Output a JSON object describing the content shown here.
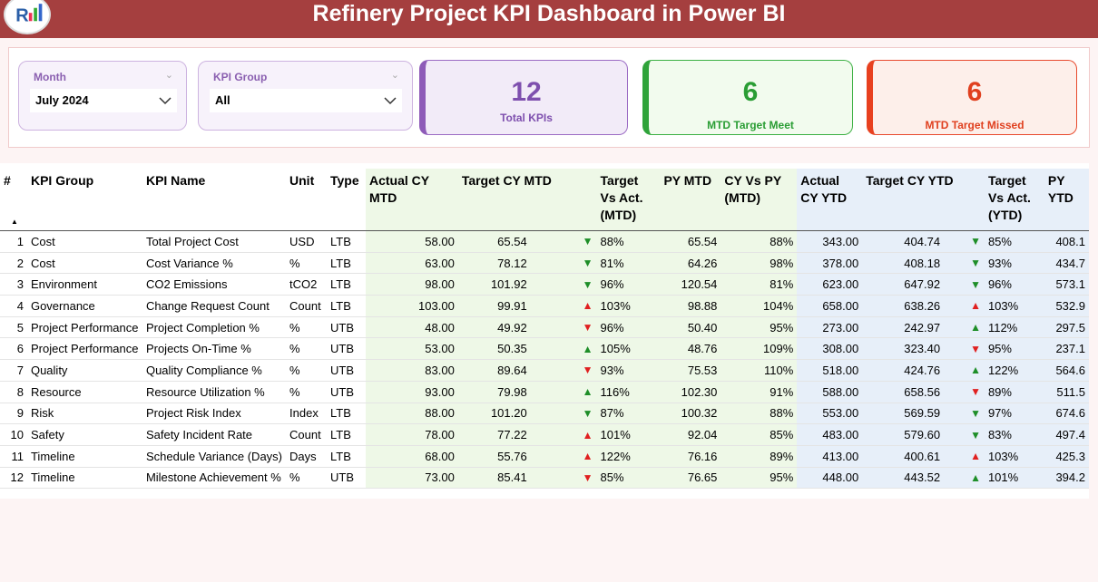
{
  "header": {
    "title": "Refinery Project KPI Dashboard in Power BI"
  },
  "slicers": [
    {
      "label": "Month",
      "value": "July 2024"
    },
    {
      "label": "KPI Group",
      "value": "All"
    }
  ],
  "cards": [
    {
      "value": "12",
      "label": "Total KPIs"
    },
    {
      "value": "6",
      "label": "MTD Target Meet"
    },
    {
      "value": "6",
      "label": "MTD Target Missed"
    }
  ],
  "table": {
    "columns": [
      "#",
      "KPI Group",
      "KPI Name",
      "Unit",
      "Type",
      "Actual CY MTD",
      "Target CY MTD",
      "Target Vs Act. (MTD)",
      "PY MTD",
      "CY Vs PY (MTD)",
      "Actual CY YTD",
      "Target CY YTD",
      "Target Vs Act. (YTD)",
      "PY YTD"
    ],
    "rows": [
      [
        "1",
        "Cost",
        "Total Project Cost",
        "USD",
        "LTB",
        "58.00",
        "65.54",
        "▼",
        "88%",
        "65.54",
        "88%",
        "343.00",
        "404.74",
        "▼",
        "85%",
        "408.1"
      ],
      [
        "2",
        "Cost",
        "Cost Variance %",
        "%",
        "LTB",
        "63.00",
        "78.12",
        "▼",
        "81%",
        "64.26",
        "98%",
        "378.00",
        "408.18",
        "▼",
        "93%",
        "434.7"
      ],
      [
        "3",
        "Environment",
        "CO2 Emissions",
        "tCO2",
        "LTB",
        "98.00",
        "101.92",
        "▼",
        "96%",
        "120.54",
        "81%",
        "623.00",
        "647.92",
        "▼",
        "96%",
        "573.1"
      ],
      [
        "4",
        "Governance",
        "Change Request Count",
        "Count",
        "LTB",
        "103.00",
        "99.91",
        "▲",
        "103%",
        "98.88",
        "104%",
        "658.00",
        "638.26",
        "▲",
        "103%",
        "532.9"
      ],
      [
        "5",
        "Project Performance",
        "Project Completion %",
        "%",
        "UTB",
        "48.00",
        "49.92",
        "▼",
        "96%",
        "50.40",
        "95%",
        "273.00",
        "242.97",
        "▲",
        "112%",
        "297.5"
      ],
      [
        "6",
        "Project Performance",
        "Projects On-Time %",
        "%",
        "UTB",
        "53.00",
        "50.35",
        "▲",
        "105%",
        "48.76",
        "109%",
        "308.00",
        "323.40",
        "▼",
        "95%",
        "237.1"
      ],
      [
        "7",
        "Quality",
        "Quality Compliance %",
        "%",
        "UTB",
        "83.00",
        "89.64",
        "▼",
        "93%",
        "75.53",
        "110%",
        "518.00",
        "424.76",
        "▲",
        "122%",
        "564.6"
      ],
      [
        "8",
        "Resource",
        "Resource Utilization %",
        "%",
        "UTB",
        "93.00",
        "79.98",
        "▲",
        "116%",
        "102.30",
        "91%",
        "588.00",
        "658.56",
        "▼",
        "89%",
        "511.5"
      ],
      [
        "9",
        "Risk",
        "Project Risk Index",
        "Index",
        "LTB",
        "88.00",
        "101.20",
        "▼",
        "87%",
        "100.32",
        "88%",
        "553.00",
        "569.59",
        "▼",
        "97%",
        "674.6"
      ],
      [
        "10",
        "Safety",
        "Safety Incident Rate",
        "Count",
        "LTB",
        "78.00",
        "77.22",
        "▲",
        "101%",
        "92.04",
        "85%",
        "483.00",
        "579.60",
        "▼",
        "83%",
        "497.4"
      ],
      [
        "11",
        "Timeline",
        "Schedule Variance (Days)",
        "Days",
        "LTB",
        "68.00",
        "55.76",
        "▲",
        "122%",
        "76.16",
        "89%",
        "413.00",
        "400.61",
        "▲",
        "103%",
        "425.3"
      ],
      [
        "12",
        "Timeline",
        "Milestone Achievement %",
        "%",
        "UTB",
        "73.00",
        "85.41",
        "▼",
        "85%",
        "76.65",
        "95%",
        "448.00",
        "443.52",
        "▲",
        "101%",
        "394.2"
      ]
    ]
  }
}
